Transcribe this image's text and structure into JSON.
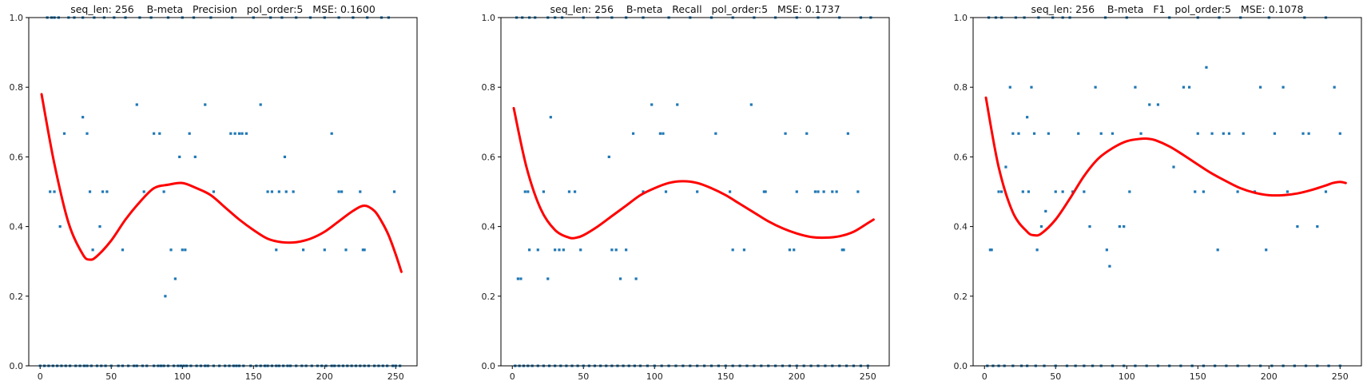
{
  "chart_data": [
    {
      "type": "scatter",
      "title": "seq_len: 256    B-meta   Precision   pol_order:5   MSE: 0.1600",
      "xlim": [
        -8,
        265
      ],
      "ylim": [
        0,
        1
      ],
      "xticks": [
        0,
        50,
        100,
        150,
        200,
        250
      ],
      "yticks": [
        0.0,
        0.2,
        0.4,
        0.6,
        0.8,
        1.0
      ],
      "grid": false,
      "points": {
        "x": [
          0,
          3,
          6,
          9,
          12,
          15,
          18,
          21,
          25,
          28,
          31,
          33,
          36,
          40,
          43,
          46,
          50,
          55,
          58,
          62,
          66,
          68,
          72,
          75,
          80,
          83,
          85,
          87,
          90,
          94,
          97,
          99,
          101,
          103,
          106,
          110,
          113,
          116,
          118,
          122,
          126,
          130,
          133,
          136,
          138,
          140,
          143,
          148,
          152,
          155,
          158,
          160,
          163,
          166,
          168,
          171,
          174,
          176,
          180,
          184,
          187,
          191,
          195,
          198,
          201,
          205,
          207,
          210,
          213,
          216,
          219,
          222,
          225,
          228,
          231,
          235,
          238,
          241,
          244,
          248,
          250,
          253,
          5,
          8,
          10,
          13,
          20,
          24,
          30,
          38,
          45,
          52,
          60,
          70,
          78,
          90,
          100,
          108,
          120,
          135,
          150,
          162,
          170,
          180,
          190,
          200,
          210,
          220,
          230,
          240,
          245,
          7,
          10,
          14,
          17,
          30,
          33,
          35,
          37,
          42,
          44,
          47,
          58,
          68,
          73,
          80,
          84,
          87,
          88,
          92,
          95,
          98,
          100,
          102,
          105,
          109,
          116,
          122,
          134,
          137,
          140,
          142,
          145,
          155,
          160,
          163,
          166,
          168,
          172,
          173,
          178,
          185,
          200,
          205,
          210,
          212,
          215,
          225,
          227,
          228,
          249
        ],
        "y": [
          0,
          0,
          0,
          0,
          0,
          0,
          0,
          0,
          0,
          0,
          0,
          0,
          0,
          0,
          0,
          0,
          0,
          0,
          0,
          0,
          0,
          0,
          0,
          0,
          0,
          0,
          0,
          0,
          0,
          0,
          0,
          0,
          0,
          0,
          0,
          0,
          0,
          0,
          0,
          0,
          0,
          0,
          0,
          0,
          0,
          0,
          0,
          0,
          0,
          0,
          0,
          0,
          0,
          0,
          0,
          0,
          0,
          0,
          0,
          0,
          0,
          0,
          0,
          0,
          0,
          0,
          0,
          0,
          0,
          0,
          0,
          0,
          0,
          0,
          0,
          0,
          0,
          0,
          0,
          0,
          0,
          0,
          1,
          1,
          1,
          1,
          1,
          1,
          1,
          1,
          1,
          1,
          1,
          1,
          1,
          1,
          1,
          1,
          1,
          1,
          1,
          1,
          1,
          1,
          1,
          1,
          1,
          1,
          1,
          1,
          1,
          0.5,
          0.5,
          0.4,
          0.667,
          0.714,
          0.667,
          0.5,
          0.333,
          0.4,
          0.5,
          0.5,
          0.333,
          0.75,
          0.5,
          0.667,
          0.667,
          0.5,
          0.2,
          0.333,
          0.25,
          0.6,
          0.333,
          0.333,
          0.667,
          0.6,
          0.75,
          0.5,
          0.667,
          0.667,
          0.667,
          0.667,
          0.667,
          0.75,
          0.5,
          0.5,
          0.333,
          0.5,
          0.6,
          0.5,
          0.5,
          0.333,
          0.333,
          0.667,
          0.5,
          0.5,
          0.333,
          0.5,
          0.333,
          0.333,
          0.5
        ]
      },
      "fit": {
        "x": [
          1,
          10,
          20,
          30,
          35,
          40,
          50,
          60,
          70,
          80,
          90,
          100,
          110,
          120,
          130,
          140,
          150,
          160,
          170,
          180,
          190,
          200,
          210,
          220,
          228,
          235,
          240,
          245,
          250,
          254
        ],
        "y": [
          0.78,
          0.58,
          0.41,
          0.32,
          0.305,
          0.315,
          0.36,
          0.42,
          0.47,
          0.51,
          0.52,
          0.525,
          0.51,
          0.49,
          0.455,
          0.42,
          0.39,
          0.365,
          0.355,
          0.355,
          0.365,
          0.385,
          0.415,
          0.445,
          0.46,
          0.445,
          0.415,
          0.375,
          0.32,
          0.27
        ]
      },
      "colors": {
        "points": "#1f77b4",
        "fit": "#ff0000"
      }
    },
    {
      "type": "scatter",
      "title": "seq_len: 256    B-meta   Recall   pol_order:5   MSE: 0.1737",
      "xlim": [
        -8,
        265
      ],
      "ylim": [
        0,
        1
      ],
      "xticks": [
        0,
        50,
        100,
        150,
        200,
        250
      ],
      "yticks": [
        0.0,
        0.2,
        0.4,
        0.6,
        0.8,
        1.0
      ],
      "grid": false,
      "points": {
        "x": [
          2,
          5,
          8,
          11,
          14,
          18,
          22,
          26,
          30,
          34,
          38,
          42,
          46,
          50,
          54,
          58,
          62,
          66,
          70,
          74,
          78,
          82,
          86,
          90,
          95,
          100,
          105,
          110,
          115,
          120,
          125,
          130,
          135,
          140,
          145,
          150,
          155,
          160,
          165,
          170,
          175,
          180,
          185,
          190,
          195,
          200,
          205,
          210,
          215,
          220,
          225,
          230,
          235,
          240,
          245,
          250,
          3,
          7,
          12,
          16,
          25,
          30,
          35,
          50,
          60,
          70,
          80,
          92,
          110,
          125,
          140,
          155,
          170,
          185,
          200,
          215,
          230,
          245,
          252,
          4,
          6,
          9,
          11,
          12,
          18,
          22,
          25,
          27,
          30,
          33,
          36,
          40,
          44,
          48,
          68,
          70,
          73,
          76,
          80,
          85,
          87,
          92,
          98,
          104,
          106,
          108,
          116,
          130,
          143,
          153,
          155,
          163,
          168,
          177,
          178,
          192,
          195,
          198,
          200,
          207,
          213,
          215,
          219,
          225,
          228,
          232,
          233,
          236,
          243
        ],
        "y": [
          0,
          0,
          0,
          0,
          0,
          0,
          0,
          0,
          0,
          0,
          0,
          0,
          0,
          0,
          0,
          0,
          0,
          0,
          0,
          0,
          0,
          0,
          0,
          0,
          0,
          0,
          0,
          0,
          0,
          0,
          0,
          0,
          0,
          0,
          0,
          0,
          0,
          0,
          0,
          0,
          0,
          0,
          0,
          0,
          0,
          0,
          0,
          0,
          0,
          0,
          0,
          0,
          0,
          0,
          0,
          0,
          1,
          1,
          1,
          1,
          1,
          1,
          1,
          1,
          1,
          1,
          1,
          1,
          1,
          1,
          1,
          1,
          1,
          1,
          1,
          1,
          1,
          1,
          1,
          0.25,
          0.25,
          0.5,
          0.5,
          0.333,
          0.333,
          0.5,
          0.25,
          0.714,
          0.333,
          0.333,
          0.333,
          0.5,
          0.5,
          0.333,
          0.6,
          0.333,
          0.333,
          0.25,
          0.333,
          0.667,
          0.25,
          0.5,
          0.75,
          0.667,
          0.667,
          0.5,
          0.75,
          0.5,
          0.667,
          0.5,
          0.333,
          0.333,
          0.75,
          0.5,
          0.5,
          0.667,
          0.333,
          0.333,
          0.5,
          0.667,
          0.5,
          0.5,
          0.5,
          0.5,
          0.5,
          0.333,
          0.333,
          0.667,
          0.5
        ]
      },
      "fit": {
        "x": [
          1,
          10,
          20,
          30,
          40,
          45,
          50,
          60,
          70,
          80,
          90,
          100,
          110,
          120,
          130,
          140,
          150,
          160,
          170,
          180,
          190,
          200,
          210,
          220,
          230,
          240,
          250,
          254
        ],
        "y": [
          0.74,
          0.57,
          0.45,
          0.39,
          0.368,
          0.368,
          0.375,
          0.4,
          0.43,
          0.46,
          0.49,
          0.51,
          0.525,
          0.53,
          0.525,
          0.51,
          0.49,
          0.465,
          0.44,
          0.415,
          0.395,
          0.38,
          0.37,
          0.368,
          0.372,
          0.385,
          0.41,
          0.42
        ]
      },
      "colors": {
        "points": "#1f77b4",
        "fit": "#ff0000"
      }
    },
    {
      "type": "scatter",
      "title": "seq_len: 256    B-meta   F1   pol_order:5   MSE: 0.1078",
      "xlim": [
        -8,
        265
      ],
      "ylim": [
        0,
        1
      ],
      "xticks": [
        0,
        50,
        100,
        150,
        200,
        250
      ],
      "yticks": [
        0.0,
        0.2,
        0.4,
        0.6,
        0.8,
        1.0
      ],
      "grid": false,
      "points": {
        "x": [
          2,
          6,
          10,
          14,
          20,
          26,
          30,
          36,
          42,
          50,
          58,
          64,
          70,
          76,
          82,
          90,
          98,
          106,
          114,
          122,
          130,
          138,
          146,
          154,
          162,
          170,
          178,
          186,
          194,
          202,
          210,
          218,
          226,
          234,
          242,
          250,
          3,
          8,
          12,
          22,
          28,
          38,
          48,
          55,
          60,
          85,
          100,
          130,
          150,
          165,
          180,
          200,
          225,
          240,
          4,
          5,
          10,
          12,
          15,
          18,
          20,
          24,
          27,
          30,
          31,
          33,
          35,
          37,
          40,
          43,
          45,
          50,
          55,
          62,
          66,
          70,
          74,
          78,
          82,
          86,
          88,
          90,
          95,
          98,
          102,
          106,
          110,
          116,
          122,
          133,
          140,
          144,
          148,
          150,
          154,
          156,
          160,
          164,
          168,
          172,
          178,
          182,
          190,
          194,
          198,
          204,
          210,
          213,
          220,
          224,
          228,
          234,
          240,
          246,
          250
        ],
        "y": [
          0,
          0,
          0,
          0,
          0,
          0,
          0,
          0,
          0,
          0,
          0,
          0,
          0,
          0,
          0,
          0,
          0,
          0,
          0,
          0,
          0,
          0,
          0,
          0,
          0,
          0,
          0,
          0,
          0,
          0,
          0,
          0,
          0,
          0,
          0,
          0,
          1,
          1,
          1,
          1,
          1,
          1,
          1,
          1,
          1,
          1,
          1,
          1,
          1,
          1,
          1,
          1,
          1,
          1,
          0.333,
          0.333,
          0.5,
          0.5,
          0.571,
          0.8,
          0.667,
          0.667,
          0.5,
          0.714,
          0.5,
          0.8,
          0.667,
          0.333,
          0.4,
          0.444,
          0.667,
          0.5,
          0.5,
          0.5,
          0.667,
          0.5,
          0.4,
          0.8,
          0.667,
          0.333,
          0.286,
          0.667,
          0.4,
          0.4,
          0.5,
          0.8,
          0.667,
          0.75,
          0.75,
          0.571,
          0.8,
          0.8,
          0.5,
          0.667,
          0.5,
          0.857,
          0.667,
          0.333,
          0.667,
          0.667,
          0.5,
          0.667,
          0.5,
          0.8,
          0.333,
          0.667,
          0.8,
          0.5,
          0.4,
          0.667,
          0.667,
          0.4,
          0.5,
          0.8,
          0.667
        ],
        "fit_note": ""
      },
      "fit": {
        "x": [
          1,
          10,
          20,
          30,
          35,
          40,
          50,
          60,
          70,
          80,
          90,
          100,
          110,
          115,
          120,
          130,
          140,
          150,
          160,
          170,
          180,
          190,
          200,
          210,
          220,
          230,
          240,
          245,
          250,
          254
        ],
        "y": [
          0.77,
          0.57,
          0.44,
          0.385,
          0.375,
          0.38,
          0.42,
          0.48,
          0.545,
          0.595,
          0.625,
          0.645,
          0.652,
          0.652,
          0.648,
          0.63,
          0.605,
          0.578,
          0.552,
          0.53,
          0.51,
          0.497,
          0.49,
          0.49,
          0.495,
          0.505,
          0.518,
          0.525,
          0.528,
          0.525
        ]
      },
      "colors": {
        "points": "#1f77b4",
        "fit": "#ff0000"
      }
    }
  ]
}
